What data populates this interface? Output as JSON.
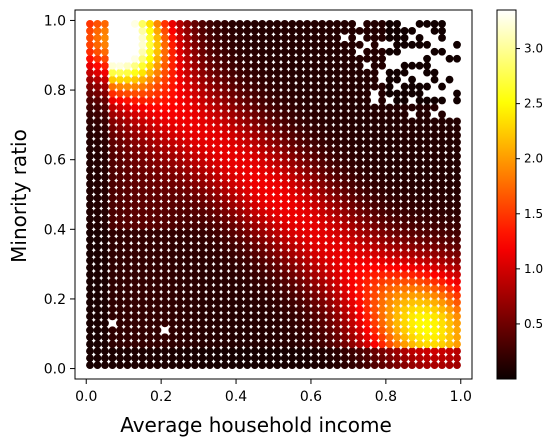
{
  "chart_data": {
    "type": "scatter",
    "title": "",
    "xlabel": "Average household income",
    "ylabel": "Minority ratio",
    "xlim": [
      -0.03,
      1.03
    ],
    "ylim": [
      -0.03,
      1.03
    ],
    "xticks": [
      "0.0",
      "0.2",
      "0.4",
      "0.6",
      "0.8",
      "1.0"
    ],
    "yticks": [
      "0.0",
      "0.2",
      "0.4",
      "0.6",
      "0.8",
      "1.0"
    ],
    "grid": false,
    "grid_points": 50,
    "grid_range": [
      0.01,
      0.99
    ],
    "colormap": "hot",
    "colorbar": {
      "min": 0.0,
      "max": 3.35,
      "ticks": [
        "0.5",
        "1.0",
        "1.5",
        "2.0",
        "2.5",
        "3.0"
      ]
    },
    "density_peaks": [
      {
        "x": 0.07,
        "y": 0.95,
        "value": 3.3
      },
      {
        "x": 0.92,
        "y": 0.13,
        "value": 1.7
      }
    ],
    "sparse_region": "upper-right",
    "missing_points": [
      {
        "x": 0.07,
        "y": 0.13
      },
      {
        "x": 0.21,
        "y": 0.11
      },
      {
        "x": 0.69,
        "y": 0.95
      },
      {
        "x": 0.93,
        "y": 0.73
      }
    ]
  }
}
